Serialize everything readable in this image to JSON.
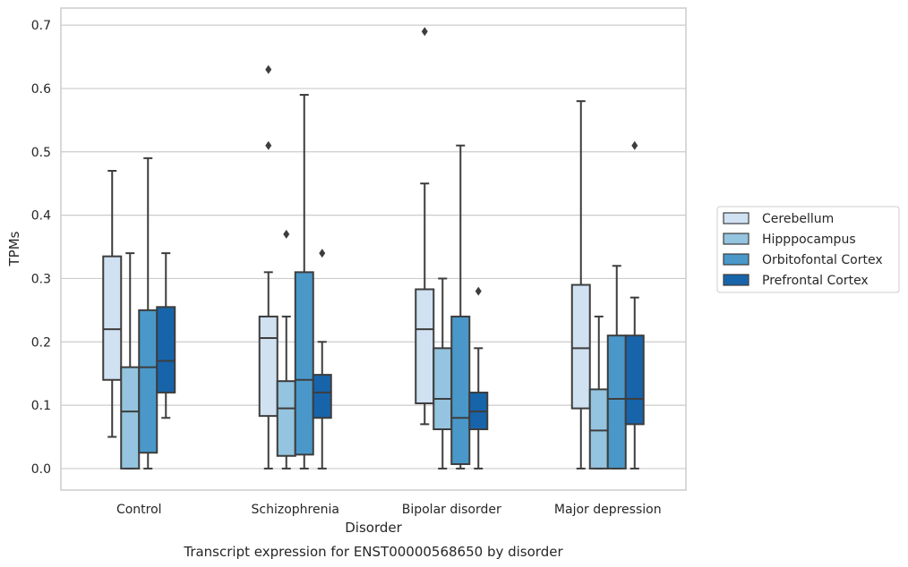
{
  "chart_data": {
    "type": "box",
    "caption": "Transcript expression for ENST00000568650 by disorder",
    "xlabel": "Disorder",
    "ylabel": "TPMs",
    "ylim": [
      -0.034,
      0.727
    ],
    "yticks": [
      0.0,
      0.1,
      0.2,
      0.3,
      0.4,
      0.5,
      0.6,
      0.7
    ],
    "ytick_labels": [
      "0.0",
      "0.1",
      "0.2",
      "0.3",
      "0.4",
      "0.5",
      "0.6",
      "0.7"
    ],
    "grid": "horizontal",
    "legend_placement": "right",
    "categories": [
      "Control",
      "Schizophrenia",
      "Bipolar disorder",
      "Major depression"
    ],
    "series": [
      {
        "name": "Cerebellum",
        "color": "#d0e1f2",
        "boxes": [
          {
            "whislo": 0.05,
            "q1": 0.14,
            "med": 0.22,
            "q3": 0.335,
            "whishi": 0.47,
            "fliers": []
          },
          {
            "whislo": 0.0,
            "q1": 0.083,
            "med": 0.206,
            "q3": 0.24,
            "whishi": 0.31,
            "fliers": [
              0.51,
              0.63
            ]
          },
          {
            "whislo": 0.07,
            "q1": 0.103,
            "med": 0.22,
            "q3": 0.283,
            "whishi": 0.45,
            "fliers": [
              0.69
            ]
          },
          {
            "whislo": 0.0,
            "q1": 0.095,
            "med": 0.19,
            "q3": 0.29,
            "whishi": 0.58,
            "fliers": []
          }
        ]
      },
      {
        "name": "Hipppocampus",
        "color": "#94c4df",
        "boxes": [
          {
            "whislo": 0.0,
            "q1": 0.0,
            "med": 0.09,
            "q3": 0.16,
            "whishi": 0.34,
            "fliers": []
          },
          {
            "whislo": 0.0,
            "q1": 0.02,
            "med": 0.095,
            "q3": 0.138,
            "whishi": 0.24,
            "fliers": [
              0.37
            ]
          },
          {
            "whislo": 0.0,
            "q1": 0.062,
            "med": 0.11,
            "q3": 0.19,
            "whishi": 0.3,
            "fliers": []
          },
          {
            "whislo": 0.0,
            "q1": 0.0,
            "med": 0.06,
            "q3": 0.125,
            "whishi": 0.24,
            "fliers": []
          }
        ]
      },
      {
        "name": "Orbitofontal Cortex",
        "color": "#4a98c9",
        "boxes": [
          {
            "whislo": 0.0,
            "q1": 0.025,
            "med": 0.16,
            "q3": 0.25,
            "whishi": 0.49,
            "fliers": []
          },
          {
            "whislo": 0.0,
            "q1": 0.022,
            "med": 0.14,
            "q3": 0.31,
            "whishi": 0.59,
            "fliers": []
          },
          {
            "whislo": 0.0,
            "q1": 0.007,
            "med": 0.08,
            "q3": 0.24,
            "whishi": 0.51,
            "fliers": []
          },
          {
            "whislo": 0.0,
            "q1": 0.0,
            "med": 0.11,
            "q3": 0.21,
            "whishi": 0.32,
            "fliers": []
          }
        ]
      },
      {
        "name": "Prefrontal Cortex",
        "color": "#1764ab",
        "boxes": [
          {
            "whislo": 0.08,
            "q1": 0.12,
            "med": 0.17,
            "q3": 0.255,
            "whishi": 0.34,
            "fliers": []
          },
          {
            "whislo": 0.0,
            "q1": 0.08,
            "med": 0.12,
            "q3": 0.148,
            "whishi": 0.2,
            "fliers": [
              0.34
            ]
          },
          {
            "whislo": 0.0,
            "q1": 0.062,
            "med": 0.09,
            "q3": 0.12,
            "whishi": 0.19,
            "fliers": [
              0.28
            ]
          },
          {
            "whislo": 0.0,
            "q1": 0.07,
            "med": 0.11,
            "q3": 0.21,
            "whishi": 0.27,
            "fliers": [
              0.51
            ]
          }
        ]
      }
    ]
  }
}
